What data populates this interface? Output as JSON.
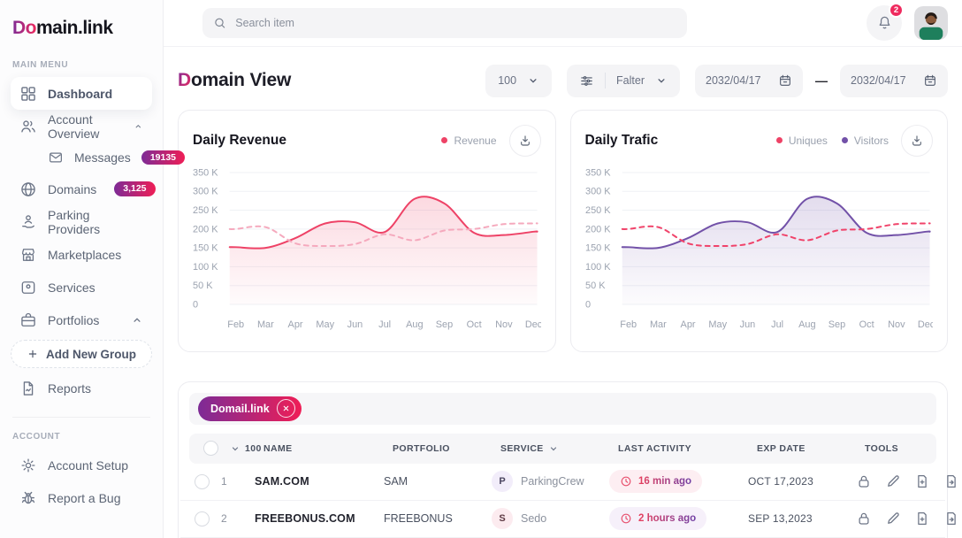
{
  "colors": {
    "accent_red": "#EF2A5E",
    "accent_purple": "#7D2B96",
    "line_red": "#EE4266",
    "line_red_light": "#F5A9BD",
    "line_purple": "#7251A8"
  },
  "brand": {
    "logo_gradient_part": "Do",
    "logo_dark_part": "main.link"
  },
  "topbar": {
    "search_placeholder": "Search item",
    "notification_count": "2"
  },
  "sidebar": {
    "main_menu_label": "MAIN MENU",
    "account_label": "ACCOUNT",
    "dashboard": "Dashboard",
    "account_overview": "Account Overview",
    "messages": "Messages",
    "messages_badge": "19135",
    "domains": "Domains",
    "domains_badge": "3,125",
    "parking_providers": "Parking Providers",
    "marketplaces": "Marketplaces",
    "services": "Services",
    "portfolios": "Portfolios",
    "add_new_group": "Add New Group",
    "reports": "Reports",
    "account_setup": "Account Setup",
    "report_a_bug": "Report a Bug"
  },
  "page_header": {
    "title_accent": "D",
    "title_rest": "omain View",
    "rows_select": "100",
    "filter_select": "Falter",
    "date_from": "2032/04/17",
    "date_range_separator": "—",
    "date_to": "2032/04/17"
  },
  "chart_data": [
    {
      "type": "line",
      "title": "Daily Revenue",
      "xlabel": "",
      "ylabel": "",
      "unit": "K",
      "ylim": [
        0,
        350
      ],
      "grid": true,
      "legend_position": "top-right",
      "categories": [
        "Feb",
        "Mar",
        "Apr",
        "May",
        "Jun",
        "Jul",
        "Aug",
        "Sep",
        "Oct",
        "Nov",
        "Dec"
      ],
      "yticks": [
        {
          "value": 350,
          "label": "350 K"
        },
        {
          "value": 300,
          "label": "300 K"
        },
        {
          "value": 250,
          "label": "250 K"
        },
        {
          "value": 200,
          "label": "200 K"
        },
        {
          "value": 150,
          "label": "150 K"
        },
        {
          "value": 100,
          "label": "100 K"
        },
        {
          "value": 50,
          "label": "50 K"
        },
        {
          "value": 0,
          "label": "0"
        }
      ],
      "legend": [
        {
          "name": "Revenue",
          "color": "#EE4266"
        }
      ],
      "series": [
        {
          "name": "Revenue",
          "color": "#EE4266",
          "dashed": false,
          "fill": true,
          "values": [
            152,
            150,
            176,
            215,
            218,
            192,
            280,
            268,
            190,
            184,
            193
          ]
        },
        {
          "name": "Revenue (dashed)",
          "color": "#F5A9BD",
          "dashed": true,
          "fill": false,
          "values": [
            200,
            205,
            162,
            155,
            160,
            186,
            170,
            196,
            200,
            213,
            215
          ]
        }
      ]
    },
    {
      "type": "line",
      "title": "Daily Trafic",
      "xlabel": "",
      "ylabel": "",
      "unit": "K",
      "ylim": [
        0,
        350
      ],
      "grid": true,
      "legend_position": "top-right",
      "categories": [
        "Feb",
        "Mar",
        "Apr",
        "May",
        "Jun",
        "Jul",
        "Aug",
        "Sep",
        "Oct",
        "Nov",
        "Dec"
      ],
      "yticks": [
        {
          "value": 350,
          "label": "350 K"
        },
        {
          "value": 300,
          "label": "300 K"
        },
        {
          "value": 250,
          "label": "250 K"
        },
        {
          "value": 200,
          "label": "200 K"
        },
        {
          "value": 150,
          "label": "150 K"
        },
        {
          "value": 100,
          "label": "100 K"
        },
        {
          "value": 50,
          "label": "50 K"
        },
        {
          "value": 0,
          "label": "0"
        }
      ],
      "legend": [
        {
          "name": "Uniques",
          "color": "#EE4266"
        },
        {
          "name": "Visitors",
          "color": "#7251A8"
        }
      ],
      "series": [
        {
          "name": "Visitors",
          "color": "#7251A8",
          "dashed": false,
          "fill": true,
          "values": [
            152,
            150,
            176,
            215,
            218,
            192,
            280,
            268,
            190,
            184,
            193
          ]
        },
        {
          "name": "Uniques",
          "color": "#F0436A",
          "dashed": true,
          "fill": false,
          "values": [
            200,
            205,
            162,
            155,
            160,
            186,
            170,
            196,
            200,
            213,
            215
          ]
        }
      ]
    }
  ],
  "table": {
    "filter_chip": "Domail.link",
    "header": {
      "count": "100",
      "name": "NAME",
      "portfolio": "PORTFOLIO",
      "service": "SERVICE",
      "last_activity": "LAST ACTIVITY",
      "exp_date": "EXP DATE",
      "tools": "TOOLS"
    },
    "rows": [
      {
        "num": "1",
        "name": "SAM.COM",
        "portfolio": "SAM",
        "service_initial": "P",
        "service_name": "ParkingCrew",
        "service_theme": "purple",
        "last_activity": "16 min ago",
        "activity_theme": "pink",
        "exp_date": "OCT 17,2023"
      },
      {
        "num": "2",
        "name": "FREEBONUS.COM",
        "portfolio": "FREEBONUS",
        "service_initial": "S",
        "service_name": "Sedo",
        "service_theme": "pink",
        "last_activity": "2 hours ago",
        "activity_theme": "purple",
        "exp_date": "SEP 13,2023"
      }
    ]
  }
}
